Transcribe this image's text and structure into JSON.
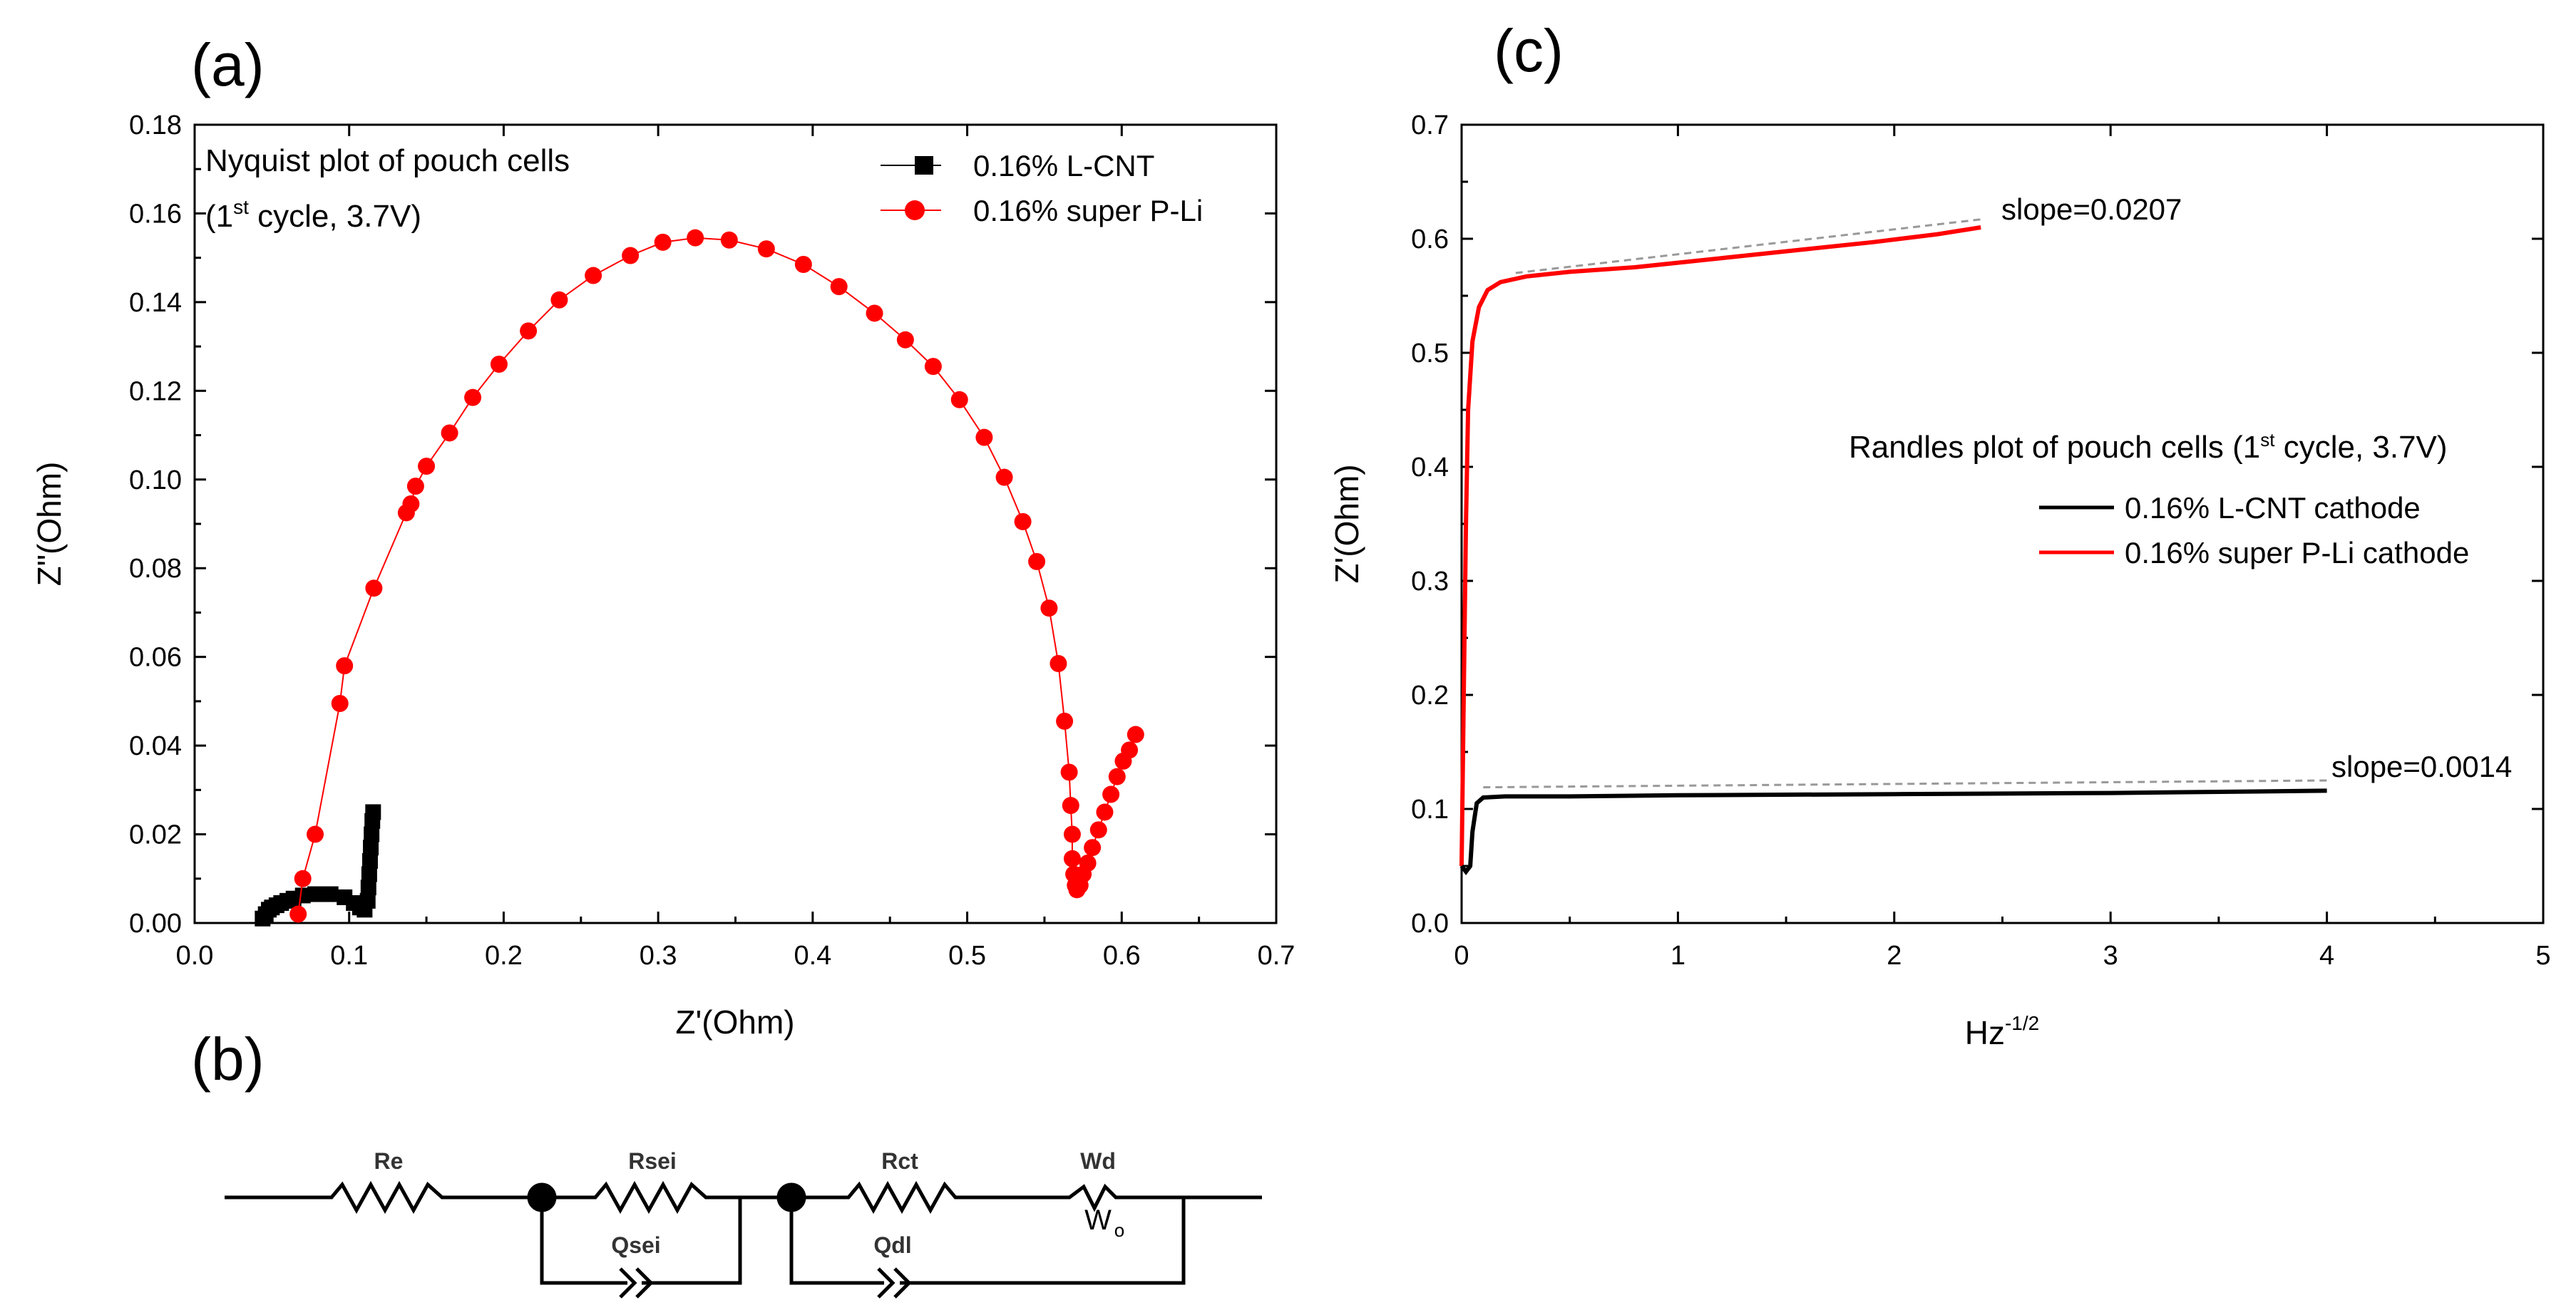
{
  "panels": {
    "a": "(a)",
    "b": "(b)",
    "c": "(c)"
  },
  "chart_data": [
    {
      "id": "a",
      "type": "scatter",
      "xlabel": "Z'(Ohm)",
      "ylabel": "Z\"(Ohm)",
      "xlim": [
        0.0,
        0.7
      ],
      "ylim": [
        0.0,
        0.18
      ],
      "xticks": [
        "0.0",
        "0.1",
        "0.2",
        "0.3",
        "0.4",
        "0.5",
        "0.6",
        "0.7"
      ],
      "yticks": [
        "0.00",
        "0.02",
        "0.04",
        "0.06",
        "0.08",
        "0.10",
        "0.12",
        "0.14",
        "0.16",
        "0.18"
      ],
      "annotation": {
        "line1": "Nyquist plot of pouch cells",
        "line2_pre": "(1",
        "line2_sup": "st",
        "line2_post": " cycle, 3.7V)"
      },
      "legend": [
        "0.16% L-CNT",
        "0.16% super P-Li"
      ],
      "series": [
        {
          "name": "0.16% L-CNT",
          "color": "#000000",
          "marker": "square",
          "points": [
            [
              0.044,
              0.001
            ],
            [
              0.046,
              0.002
            ],
            [
              0.048,
              0.003
            ],
            [
              0.05,
              0.0035
            ],
            [
              0.053,
              0.004
            ],
            [
              0.056,
              0.0045
            ],
            [
              0.06,
              0.005
            ],
            [
              0.064,
              0.0055
            ],
            [
              0.07,
              0.0062
            ],
            [
              0.078,
              0.0065
            ],
            [
              0.088,
              0.0065
            ],
            [
              0.097,
              0.0058
            ],
            [
              0.103,
              0.0045
            ],
            [
              0.107,
              0.0035
            ],
            [
              0.11,
              0.003
            ],
            [
              0.112,
              0.005
            ],
            [
              0.1125,
              0.008
            ],
            [
              0.113,
              0.011
            ],
            [
              0.1135,
              0.014
            ],
            [
              0.114,
              0.017
            ],
            [
              0.1145,
              0.02
            ],
            [
              0.115,
              0.023
            ],
            [
              0.1155,
              0.025
            ]
          ]
        },
        {
          "name": "0.16% super P-Li",
          "color": "#ff0000",
          "marker": "circle",
          "points": [
            [
              0.067,
              0.002
            ],
            [
              0.07,
              0.01
            ],
            [
              0.078,
              0.02
            ],
            [
              0.094,
              0.0495
            ],
            [
              0.097,
              0.058
            ],
            [
              0.116,
              0.0755
            ],
            [
              0.137,
              0.0925
            ],
            [
              0.14,
              0.0945
            ],
            [
              0.143,
              0.0985
            ],
            [
              0.15,
              0.103
            ],
            [
              0.165,
              0.1105
            ],
            [
              0.18,
              0.1185
            ],
            [
              0.197,
              0.126
            ],
            [
              0.216,
              0.1335
            ],
            [
              0.236,
              0.1405
            ],
            [
              0.258,
              0.146
            ],
            [
              0.282,
              0.1505
            ],
            [
              0.303,
              0.1535
            ],
            [
              0.324,
              0.1545
            ],
            [
              0.346,
              0.154
            ],
            [
              0.37,
              0.152
            ],
            [
              0.394,
              0.1485
            ],
            [
              0.417,
              0.1435
            ],
            [
              0.44,
              0.1375
            ],
            [
              0.46,
              0.1315
            ],
            [
              0.478,
              0.1255
            ],
            [
              0.495,
              0.118
            ],
            [
              0.511,
              0.1095
            ],
            [
              0.524,
              0.1005
            ],
            [
              0.536,
              0.0905
            ],
            [
              0.545,
              0.0815
            ],
            [
              0.553,
              0.071
            ],
            [
              0.559,
              0.0585
            ],
            [
              0.563,
              0.0455
            ],
            [
              0.566,
              0.034
            ],
            [
              0.567,
              0.0265
            ],
            [
              0.568,
              0.02
            ],
            [
              0.568,
              0.0145
            ],
            [
              0.569,
              0.011
            ],
            [
              0.57,
              0.0085
            ],
            [
              0.571,
              0.0075
            ],
            [
              0.573,
              0.0085
            ],
            [
              0.575,
              0.011
            ],
            [
              0.578,
              0.0135
            ],
            [
              0.581,
              0.017
            ],
            [
              0.585,
              0.021
            ],
            [
              0.589,
              0.025
            ],
            [
              0.593,
              0.029
            ],
            [
              0.597,
              0.033
            ],
            [
              0.601,
              0.0365
            ],
            [
              0.605,
              0.039
            ],
            [
              0.609,
              0.0425
            ]
          ]
        }
      ]
    },
    {
      "id": "c",
      "type": "line",
      "xlabel_base": "Hz",
      "xlabel_sup": "-1/2",
      "ylabel": "Z'(Ohm)",
      "xlim": [
        0,
        5
      ],
      "ylim": [
        0.0,
        0.7
      ],
      "xticks": [
        "0",
        "1",
        "2",
        "3",
        "4",
        "5"
      ],
      "yticks": [
        "0.0",
        "0.1",
        "0.2",
        "0.3",
        "0.4",
        "0.5",
        "0.6",
        "0.7"
      ],
      "annotation": {
        "pre": "Randles plot of pouch cells (1",
        "sup": "st",
        "post": " cycle, 3.7V)"
      },
      "legend": [
        "0.16% L-CNT cathode",
        "0.16% super P-Li cathode"
      ],
      "slope_labels": [
        "slope=0.0207",
        "slope=0.0014"
      ],
      "series": [
        {
          "name": "0.16% super P-Li cathode",
          "color": "#ff0000",
          "points": [
            [
              0.0,
              0.05
            ],
            [
              0.01,
              0.2
            ],
            [
              0.02,
              0.35
            ],
            [
              0.03,
              0.45
            ],
            [
              0.05,
              0.51
            ],
            [
              0.08,
              0.54
            ],
            [
              0.12,
              0.555
            ],
            [
              0.18,
              0.562
            ],
            [
              0.3,
              0.567
            ],
            [
              0.5,
              0.571
            ],
            [
              0.8,
              0.575
            ],
            [
              1.0,
              0.579
            ],
            [
              1.3,
              0.585
            ],
            [
              1.6,
              0.591
            ],
            [
              1.9,
              0.597
            ],
            [
              2.2,
              0.604
            ],
            [
              2.4,
              0.61
            ]
          ]
        },
        {
          "name": "0.16% L-CNT cathode",
          "color": "#000000",
          "points": [
            [
              0.0,
              0.05
            ],
            [
              0.02,
              0.045
            ],
            [
              0.04,
              0.05
            ],
            [
              0.05,
              0.08
            ],
            [
              0.07,
              0.105
            ],
            [
              0.1,
              0.11
            ],
            [
              0.2,
              0.111
            ],
            [
              0.5,
              0.111
            ],
            [
              1.0,
              0.112
            ],
            [
              2.0,
              0.113
            ],
            [
              3.0,
              0.114
            ],
            [
              4.0,
              0.116
            ]
          ]
        }
      ],
      "fit_lines": [
        {
          "color": "#999999",
          "points": [
            [
              0.25,
              0.57
            ],
            [
              2.4,
              0.617
            ]
          ]
        },
        {
          "color": "#999999",
          "points": [
            [
              0.1,
              0.119
            ],
            [
              4.0,
              0.125
            ]
          ]
        }
      ]
    }
  ],
  "circuit": {
    "labels": {
      "re": "Re",
      "rsei": "Rsei",
      "qsei": "Qsei",
      "rct": "Rct",
      "wd": "Wd",
      "qdl": "Qdl"
    }
  }
}
